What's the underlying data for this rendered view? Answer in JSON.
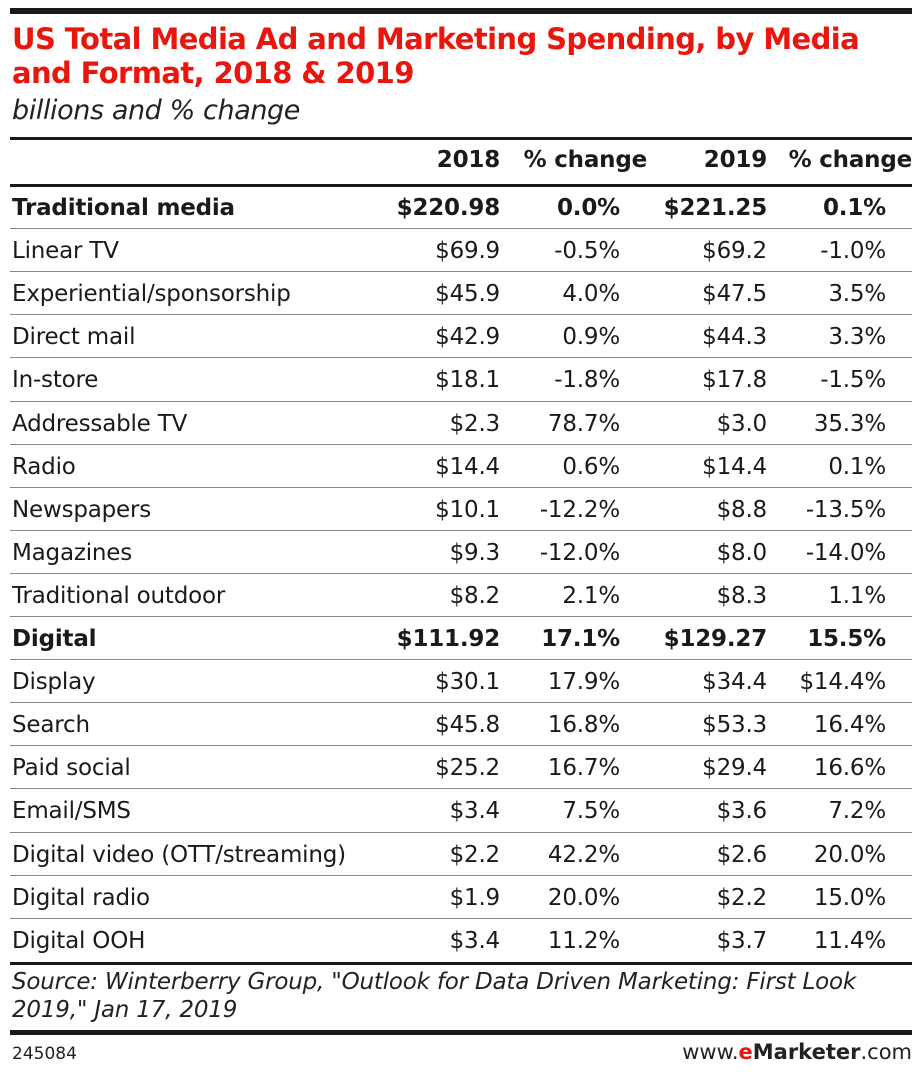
{
  "title": "US Total Media Ad and Marketing Spending, by Media and Format, 2018 & 2019",
  "subtitle": "billions and % change",
  "chart_data": {
    "type": "table",
    "columns": [
      "",
      "2018",
      "% change",
      "2019",
      "% change"
    ],
    "rows": [
      {
        "label": "Traditional media",
        "bold": true,
        "v2018": "$220.98",
        "c2018": "0.0%",
        "v2019": "$221.25",
        "c2019": "0.1%"
      },
      {
        "label": "Linear TV",
        "v2018": "$69.9",
        "c2018": "-0.5%",
        "v2019": "$69.2",
        "c2019": "-1.0%"
      },
      {
        "label": "Experiential/sponsorship",
        "v2018": "$45.9",
        "c2018": "4.0%",
        "v2019": "$47.5",
        "c2019": "3.5%"
      },
      {
        "label": "Direct mail",
        "v2018": "$42.9",
        "c2018": "0.9%",
        "v2019": "$44.3",
        "c2019": "3.3%"
      },
      {
        "label": "In-store",
        "v2018": "$18.1",
        "c2018": "-1.8%",
        "v2019": "$17.8",
        "c2019": "-1.5%"
      },
      {
        "label": "Addressable TV",
        "v2018": "$2.3",
        "c2018": "78.7%",
        "v2019": "$3.0",
        "c2019": "35.3%"
      },
      {
        "label": "Radio",
        "v2018": "$14.4",
        "c2018": "0.6%",
        "v2019": "$14.4",
        "c2019": "0.1%"
      },
      {
        "label": "Newspapers",
        "v2018": "$10.1",
        "c2018": "-12.2%",
        "v2019": "$8.8",
        "c2019": "-13.5%"
      },
      {
        "label": "Magazines",
        "v2018": "$9.3",
        "c2018": "-12.0%",
        "v2019": "$8.0",
        "c2019": "-14.0%"
      },
      {
        "label": "Traditional outdoor",
        "v2018": "$8.2",
        "c2018": "2.1%",
        "v2019": "$8.3",
        "c2019": "1.1%"
      },
      {
        "label": "Digital",
        "bold": true,
        "v2018": "$111.92",
        "c2018": "17.1%",
        "v2019": "$129.27",
        "c2019": "15.5%"
      },
      {
        "label": "Display",
        "v2018": "$30.1",
        "c2018": "17.9%",
        "v2019": "$34.4",
        "c2019": "$14.4%"
      },
      {
        "label": "Search",
        "v2018": "$45.8",
        "c2018": "16.8%",
        "v2019": "$53.3",
        "c2019": "16.4%"
      },
      {
        "label": "Paid social",
        "v2018": "$25.2",
        "c2018": "16.7%",
        "v2019": "$29.4",
        "c2019": "16.6%"
      },
      {
        "label": "Email/SMS",
        "v2018": "$3.4",
        "c2018": "7.5%",
        "v2019": "$3.6",
        "c2019": "7.2%"
      },
      {
        "label": "Digital video (OTT/streaming)",
        "v2018": "$2.2",
        "c2018": "42.2%",
        "v2019": "$2.6",
        "c2019": "20.0%"
      },
      {
        "label": "Digital radio",
        "v2018": "$1.9",
        "c2018": "20.0%",
        "v2019": "$2.2",
        "c2019": "15.0%"
      },
      {
        "label": "Digital OOH",
        "v2018": "$3.4",
        "c2018": "11.2%",
        "v2019": "$3.7",
        "c2019": "11.4%"
      }
    ]
  },
  "source": "Source: Winterberry Group, \"Outlook for Data Driven Marketing: First Look 2019,\" Jan 17, 2019",
  "chart_id": "245084",
  "brand": {
    "prefix": "www.",
    "e": "e",
    "marketer": "Marketer",
    "suffix": ".com"
  },
  "colors": {
    "title": "#e8160c",
    "rules": "#1a1a1a",
    "brand_accent": "#e8160c"
  }
}
